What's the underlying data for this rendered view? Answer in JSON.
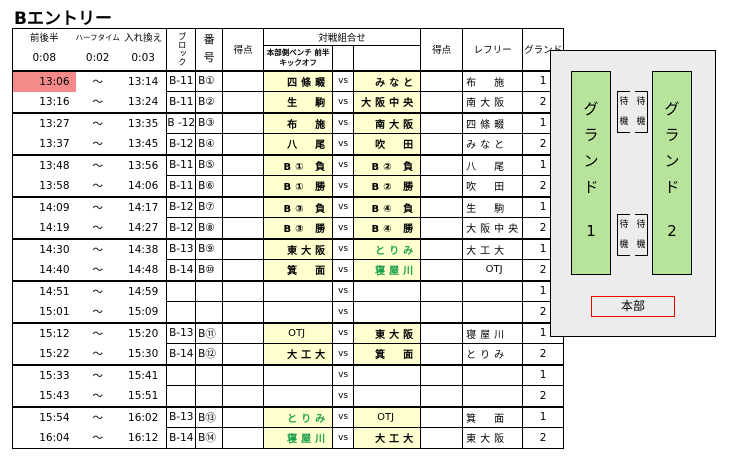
{
  "title": "Bエントリー",
  "header": {
    "first_second_half": "前後半",
    "half_time": "ハーフタイム",
    "changeover": "入れ換え",
    "first_second_half_value": "0:08",
    "half_time_value": "0:02",
    "changeover_value": "0:03",
    "block": "ブロック",
    "number": "番号",
    "score": "得点",
    "matchup": "対戦組合せ",
    "bench_note": "本部側ベンチ 前半キックオフ",
    "referee": "レフリー",
    "ground": "グランド"
  },
  "rows": [
    {
      "start": "13:06",
      "sep": "〜",
      "end": "13:14",
      "block": "B-11",
      "no": "B①",
      "a": "四條畷",
      "vs": "vs",
      "b": "みなと",
      "ref": "布　施",
      "g": "1"
    },
    {
      "start": "13:16",
      "sep": "〜",
      "end": "13:24",
      "block": "B-11",
      "no": "B②",
      "a": "生　駒",
      "vs": "vs",
      "b": "大阪中央",
      "ref": "南大阪",
      "g": "2"
    },
    {
      "start": "13:27",
      "sep": "〜",
      "end": "13:35",
      "block": "B -12",
      "no": "B③",
      "a": "布　施",
      "vs": "vs",
      "b": "南大阪",
      "ref": "四條畷",
      "g": "1"
    },
    {
      "start": "13:37",
      "sep": "〜",
      "end": "13:45",
      "block": "B-12",
      "no": "B④",
      "a": "八　尾",
      "vs": "vs",
      "b": "吹　田",
      "ref": "みなと",
      "g": "2"
    },
    {
      "start": "13:48",
      "sep": "〜",
      "end": "13:56",
      "block": "B-11",
      "no": "B⑤",
      "a": "B① 負",
      "vs": "vs",
      "b": "B② 負",
      "ref": "八　尾",
      "g": "1"
    },
    {
      "start": "13:58",
      "sep": "〜",
      "end": "14:06",
      "block": "B-11",
      "no": "B⑥",
      "a": "B① 勝",
      "vs": "vs",
      "b": "B② 勝",
      "ref": "吹　田",
      "g": "2"
    },
    {
      "start": "14:09",
      "sep": "〜",
      "end": "14:17",
      "block": "B-12",
      "no": "B⑦",
      "a": "B③ 負",
      "vs": "vs",
      "b": "B④ 負",
      "ref": "生　駒",
      "g": "1"
    },
    {
      "start": "14:19",
      "sep": "〜",
      "end": "14:27",
      "block": "B-12",
      "no": "B⑧",
      "a": "B③ 勝",
      "vs": "vs",
      "b": "B④ 勝",
      "ref": "大阪中央",
      "g": "2"
    },
    {
      "start": "14:30",
      "sep": "〜",
      "end": "14:38",
      "block": "B-13",
      "no": "B⑨",
      "a": "東大阪",
      "vs": "vs",
      "b": "とりみ",
      "ref": "大工大",
      "g": "1",
      "b_green": true
    },
    {
      "start": "14:40",
      "sep": "〜",
      "end": "14:48",
      "block": "B-14",
      "no": "B⑩",
      "a": "箕　面",
      "vs": "vs",
      "b": "寝屋川",
      "ref": "OTJ",
      "g": "2",
      "b_green": true
    },
    {
      "start": "14:51",
      "sep": "〜",
      "end": "14:59",
      "block": "",
      "no": "",
      "a": "",
      "vs": "vs",
      "b": "",
      "ref": "",
      "g": "1"
    },
    {
      "start": "15:01",
      "sep": "〜",
      "end": "15:09",
      "block": "",
      "no": "",
      "a": "",
      "vs": "vs",
      "b": "",
      "ref": "",
      "g": "2"
    },
    {
      "start": "15:12",
      "sep": "〜",
      "end": "15:20",
      "block": "B-13",
      "no": "B⑪",
      "a": "OTJ",
      "vs": "vs",
      "b": "東大阪",
      "ref": "寝屋川",
      "g": "1"
    },
    {
      "start": "15:22",
      "sep": "〜",
      "end": "15:30",
      "block": "B-14",
      "no": "B⑫",
      "a": "大工大",
      "vs": "vs",
      "b": "箕　面",
      "ref": "とりみ",
      "g": "2"
    },
    {
      "start": "15:33",
      "sep": "〜",
      "end": "15:41",
      "block": "",
      "no": "",
      "a": "",
      "vs": "vs",
      "b": "",
      "ref": "",
      "g": "1"
    },
    {
      "start": "15:43",
      "sep": "〜",
      "end": "15:51",
      "block": "",
      "no": "",
      "a": "",
      "vs": "vs",
      "b": "",
      "ref": "",
      "g": "2"
    },
    {
      "start": "15:54",
      "sep": "〜",
      "end": "16:02",
      "block": "B-13",
      "no": "B⑬",
      "a": "とりみ",
      "vs": "vs",
      "b": "OTJ",
      "ref": "箕　面",
      "g": "1",
      "a_green": true
    },
    {
      "start": "16:04",
      "sep": "〜",
      "end": "16:12",
      "block": "B-14",
      "no": "B⑭",
      "a": "寝屋川",
      "vs": "vs",
      "b": "大工大",
      "ref": "東大阪",
      "g": "2",
      "a_green": true
    }
  ],
  "map": {
    "ground1": "グランド",
    "ground1_no": "1",
    "ground2": "グランド",
    "ground2_no": "2",
    "waiting": "待機",
    "hq": "本部"
  },
  "colors": {
    "highlight": "#f58a8a",
    "team_cell": "#ffffd0",
    "green_team": "#1aa04a",
    "ground": "#b8e39b",
    "hq_border": "#ee0000"
  }
}
